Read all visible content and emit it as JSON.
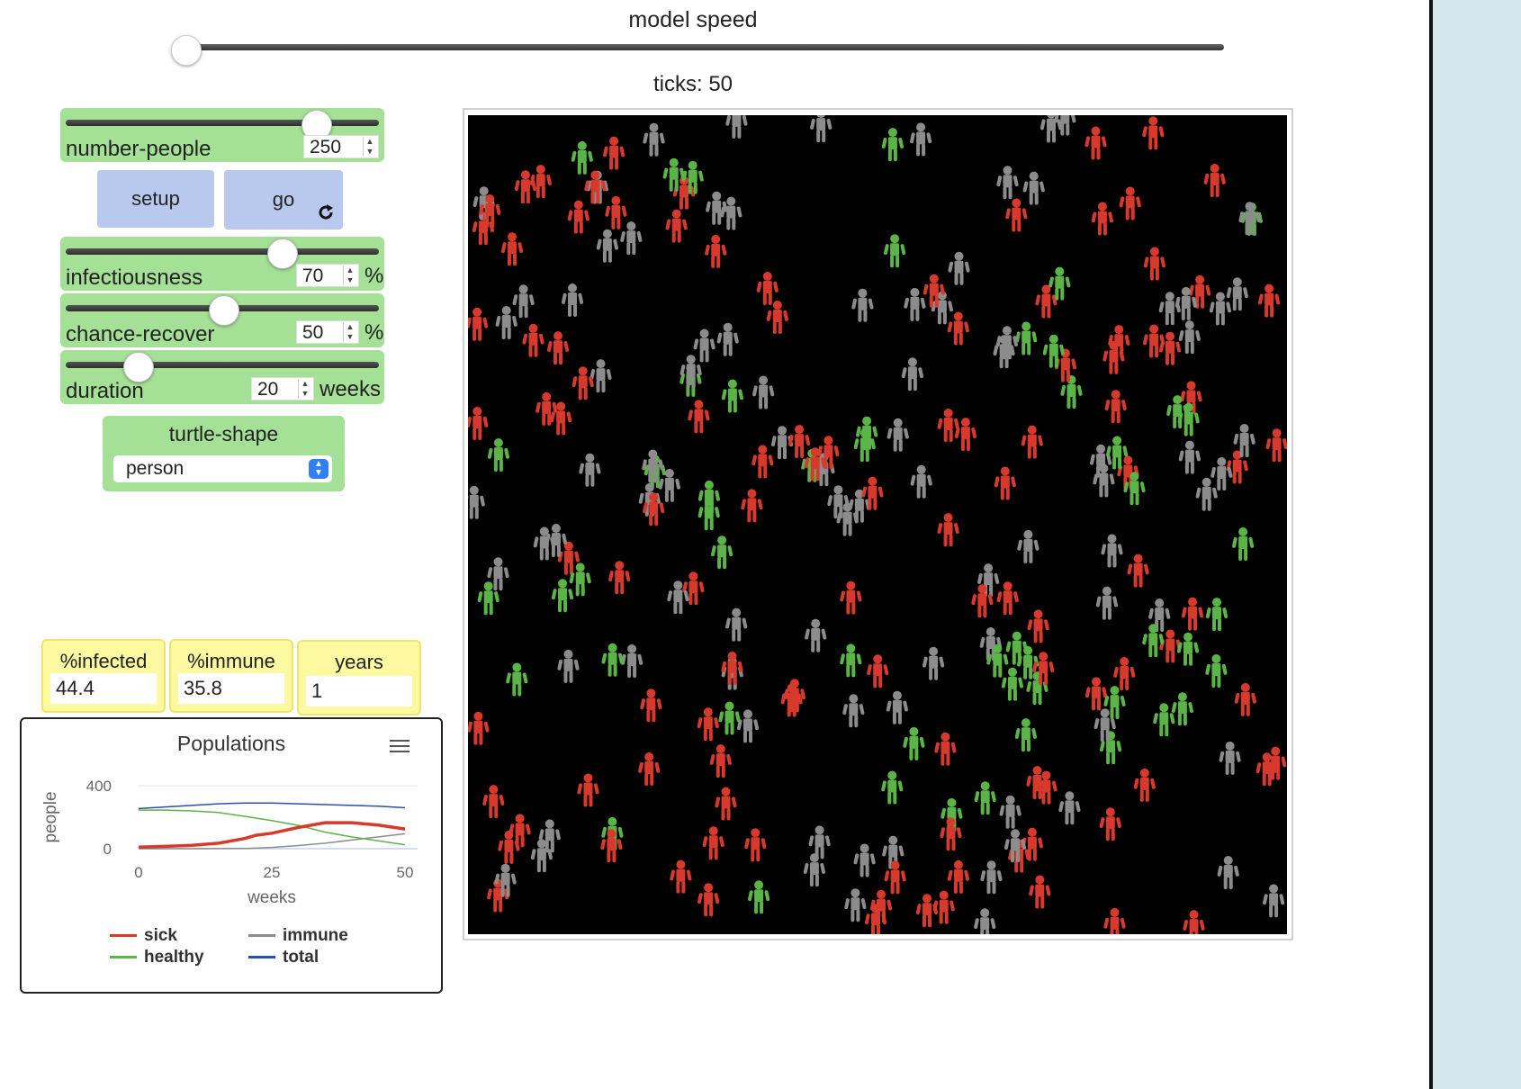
{
  "speed": {
    "label": "model speed",
    "ticks_label": "ticks: 50"
  },
  "sliders": {
    "number_people": {
      "name": "number-people",
      "value": "250",
      "unit": ""
    },
    "infectiousness": {
      "name": "infectiousness",
      "value": "70",
      "unit": "%"
    },
    "chance_recover": {
      "name": "chance-recover",
      "value": "50",
      "unit": "%"
    },
    "duration": {
      "name": "duration",
      "value": "20",
      "unit": "weeks"
    }
  },
  "buttons": {
    "setup": "setup",
    "go": "go",
    "go_icon": "forever-icon"
  },
  "chooser": {
    "label": "turtle-shape",
    "value": "person"
  },
  "monitors": [
    {
      "label": "%infected",
      "value": "44.4"
    },
    {
      "label": "%immune",
      "value": "35.8"
    },
    {
      "label": "years",
      "value": "1"
    }
  ],
  "plot": {
    "title": "Populations",
    "menu_icon": "hamburger-menu-icon",
    "legend": {
      "sick": "sick",
      "healthy": "healthy",
      "immune": "immune",
      "total": "total"
    }
  },
  "chart_data": {
    "type": "line",
    "title": "Populations",
    "xlabel": "weeks",
    "ylabel": "people",
    "xlim": [
      0,
      50
    ],
    "ylim": [
      0,
      400
    ],
    "x_ticks": [
      "0",
      "25",
      "50"
    ],
    "y_ticks": [
      "0",
      "400"
    ],
    "colors": {
      "sick": "#d73a2c",
      "healthy": "#5bb446",
      "immune": "#8c8c8c",
      "total": "#2e4fa8"
    },
    "series": [
      {
        "name": "sick",
        "x": [
          0,
          5,
          10,
          15,
          20,
          22,
          25,
          30,
          35,
          40,
          45,
          50
        ],
        "y": [
          10,
          15,
          22,
          35,
          65,
          85,
          98,
          135,
          165,
          165,
          150,
          125
        ]
      },
      {
        "name": "healthy",
        "x": [
          0,
          5,
          10,
          15,
          20,
          25,
          30,
          35,
          40,
          45,
          50
        ],
        "y": [
          245,
          245,
          240,
          230,
          205,
          178,
          148,
          105,
          75,
          50,
          25
        ]
      },
      {
        "name": "immune",
        "x": [
          0,
          10,
          20,
          25,
          30,
          35,
          40,
          45,
          50
        ],
        "y": [
          0,
          0,
          2,
          8,
          20,
          35,
          55,
          75,
          95
        ]
      },
      {
        "name": "total",
        "x": [
          0,
          5,
          10,
          15,
          20,
          25,
          30,
          35,
          40,
          45,
          50
        ],
        "y": [
          255,
          265,
          275,
          285,
          290,
          290,
          285,
          280,
          275,
          270,
          260
        ]
      }
    ]
  },
  "world": {
    "background": "#000000",
    "agent_colors": {
      "sick": "#d73a2c",
      "healthy": "#5bb446",
      "immune": "#8c8c8c"
    }
  }
}
